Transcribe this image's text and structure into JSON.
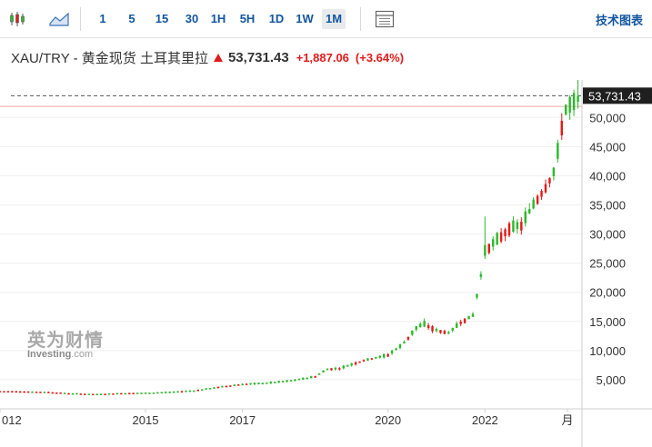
{
  "toolbar": {
    "candlestick_icon": "candlestick-chart-icon",
    "area_icon": "area-chart-icon",
    "intervals": [
      {
        "label": "1"
      },
      {
        "label": "5"
      },
      {
        "label": "15"
      },
      {
        "label": "30"
      },
      {
        "label": "1H"
      },
      {
        "label": "5H"
      },
      {
        "label": "1D"
      },
      {
        "label": "1W"
      },
      {
        "label": "1M",
        "active": true
      }
    ],
    "table_icon": "data-table-icon",
    "tech_chart_label": "技术图表"
  },
  "quote": {
    "title": "XAU/TRY - 黄金现货 土耳其里拉",
    "price": "53,731.43",
    "change": "+1,887.06",
    "change_pct": "(+3.64%)",
    "direction_icon": "up-arrow-icon",
    "up_color": "#e21a1a"
  },
  "watermark": {
    "cn": "英为财情",
    "en_main": "Investing",
    "en_suffix": ".com"
  },
  "chart_data": {
    "type": "candlestick",
    "interval": "1M",
    "y_ticks": [
      "5,000",
      "10,000",
      "15,000",
      "20,000",
      "25,000",
      "30,000",
      "35,000",
      "40,000",
      "45,000",
      "50,000"
    ],
    "ylim": [
      0,
      55500
    ],
    "x_ticks": [
      {
        "label": "012",
        "t": 2012.0
      },
      {
        "label": "2015",
        "t": 2015.0
      },
      {
        "label": "2017",
        "t": 2017.0
      },
      {
        "label": "2020",
        "t": 2020.0
      },
      {
        "label": "2022",
        "t": 2022.0
      },
      {
        "label": "月",
        "t": 2023.7
      }
    ],
    "xlim": [
      2012.0,
      2024.0
    ],
    "last_price_label": "53,731.43",
    "last_price": 53731.43,
    "reference_line": 51900,
    "colors": {
      "up": "#2eb82e",
      "down": "#e31b1b",
      "grid": "#efefef",
      "label_bg": "#1f1f1f"
    },
    "anchors": [
      [
        2012.0,
        3000
      ],
      [
        2012.5,
        2950
      ],
      [
        2013.0,
        2850
      ],
      [
        2013.5,
        2600
      ],
      [
        2014.0,
        2500
      ],
      [
        2014.5,
        2650
      ],
      [
        2015.0,
        2700
      ],
      [
        2015.5,
        2850
      ],
      [
        2016.0,
        3100
      ],
      [
        2016.5,
        3700
      ],
      [
        2017.0,
        4200
      ],
      [
        2017.5,
        4400
      ],
      [
        2018.0,
        4800
      ],
      [
        2018.5,
        5500
      ],
      [
        2018.75,
        6800
      ],
      [
        2019.0,
        6900
      ],
      [
        2019.5,
        8300
      ],
      [
        2020.0,
        9200
      ],
      [
        2020.3,
        11000
      ],
      [
        2020.6,
        14000
      ],
      [
        2020.75,
        14500
      ],
      [
        2021.0,
        13500
      ],
      [
        2021.25,
        13000
      ],
      [
        2021.5,
        14800
      ],
      [
        2021.75,
        16000
      ],
      [
        2021.9,
        22000
      ],
      [
        2022.0,
        27000
      ],
      [
        2022.25,
        29000
      ],
      [
        2022.5,
        31000
      ],
      [
        2022.75,
        31500
      ],
      [
        2023.0,
        35000
      ],
      [
        2023.25,
        38000
      ],
      [
        2023.45,
        41000
      ],
      [
        2023.55,
        47000
      ],
      [
        2023.62,
        50000
      ],
      [
        2023.7,
        52000
      ],
      [
        2023.8,
        51800
      ],
      [
        2023.9,
        53731
      ]
    ]
  }
}
